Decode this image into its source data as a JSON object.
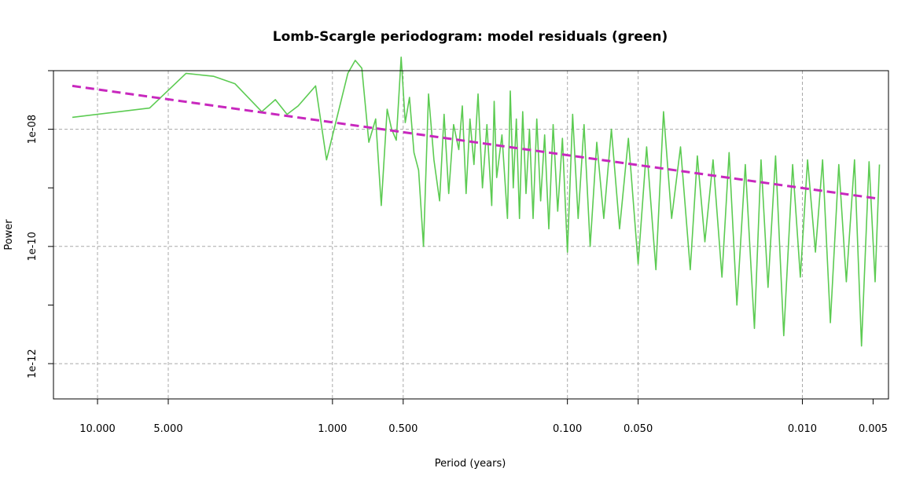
{
  "chart_data": {
    "type": "line",
    "title": "Lomb-Scargle periodogram: model residuals (green)",
    "xlabel": "Period (years)",
    "ylabel": "Power",
    "x_scale": "log",
    "y_scale": "log",
    "x_reversed": true,
    "xlim": [
      15.4,
      0.0043
    ],
    "ylim": [
      2.5e-13,
      1e-07
    ],
    "x_ticks": [
      10,
      5,
      1,
      0.5,
      0.1,
      0.05,
      0.01,
      0.005
    ],
    "x_tick_labels": [
      "10.000",
      "5.000",
      "1.000",
      "0.500",
      "0.100",
      "0.050",
      "0.010",
      "0.005"
    ],
    "y_ticks": [
      1e-12,
      1e-11,
      1e-10,
      1e-09,
      1e-08,
      1e-07
    ],
    "y_tick_labels": [
      "1e-12",
      "",
      "1e-10",
      "",
      "1e-08",
      ""
    ],
    "x_grid": [
      10,
      5,
      1,
      0.5,
      0.1,
      0.05,
      0.01
    ],
    "y_grid": [
      1e-12,
      1e-10,
      1e-08
    ],
    "grid": true,
    "series": [
      {
        "role": "periodogram",
        "color": "#5ccb52",
        "style": "solid",
        "x": [
          12.8,
          6.0,
          4.2,
          3.2,
          2.6,
          2.0,
          1.75,
          1.56,
          1.4,
          1.18,
          1.06,
          0.96,
          0.86,
          0.8,
          0.75,
          0.7,
          0.655,
          0.62,
          0.585,
          0.56,
          0.535,
          0.51,
          0.49,
          0.47,
          0.45,
          0.43,
          0.41,
          0.39,
          0.37,
          0.35,
          0.335,
          0.32,
          0.305,
          0.29,
          0.28,
          0.27,
          0.26,
          0.25,
          0.24,
          0.23,
          0.22,
          0.21,
          0.205,
          0.2,
          0.19,
          0.18,
          0.175,
          0.17,
          0.165,
          0.16,
          0.155,
          0.15,
          0.145,
          0.14,
          0.135,
          0.13,
          0.125,
          0.12,
          0.115,
          0.11,
          0.105,
          0.1,
          0.095,
          0.09,
          0.085,
          0.08,
          0.075,
          0.07,
          0.065,
          0.06,
          0.055,
          0.05,
          0.046,
          0.042,
          0.039,
          0.036,
          0.033,
          0.03,
          0.028,
          0.026,
          0.024,
          0.022,
          0.0205,
          0.019,
          0.0175,
          0.016,
          0.015,
          0.014,
          0.013,
          0.012,
          0.011,
          0.0102,
          0.0095,
          0.0088,
          0.0082,
          0.0076,
          0.007,
          0.0065,
          0.006,
          0.0056,
          0.0052,
          0.0049,
          0.0047
        ],
        "y": [
          1.6e-08,
          2.3e-08,
          9e-08,
          8e-08,
          6e-08,
          2e-08,
          3.2e-08,
          1.8e-08,
          2.5e-08,
          5.5e-08,
          3e-09,
          1.5e-08,
          9e-08,
          1.5e-07,
          1.1e-07,
          6e-09,
          1.5e-08,
          5e-10,
          2.2e-08,
          1e-08,
          6.5e-09,
          1.7e-07,
          1.3e-08,
          3.5e-08,
          4e-09,
          2e-09,
          1e-10,
          4e-08,
          3e-09,
          6e-10,
          1.8e-08,
          8e-10,
          1.2e-08,
          4.5e-09,
          2.5e-08,
          8e-10,
          1.5e-08,
          2.5e-09,
          4e-08,
          1e-09,
          1.2e-08,
          5e-10,
          3e-08,
          1.5e-09,
          8e-09,
          3e-10,
          4.5e-08,
          1e-09,
          1.5e-08,
          3e-10,
          2e-08,
          8e-10,
          1e-08,
          3e-10,
          1.5e-08,
          6e-10,
          8e-09,
          2e-10,
          1.2e-08,
          4e-10,
          7e-09,
          8e-11,
          1.8e-08,
          3e-10,
          1.2e-08,
          1e-10,
          6e-09,
          3e-10,
          1e-08,
          2e-10,
          7e-09,
          5e-11,
          5e-09,
          4e-11,
          2e-08,
          3e-10,
          5e-09,
          4e-11,
          3.5e-09,
          1.2e-10,
          3e-09,
          3e-11,
          4e-09,
          1e-11,
          2.5e-09,
          4e-12,
          3e-09,
          2e-11,
          3.5e-09,
          3e-12,
          2.5e-09,
          3e-11,
          3e-09,
          8e-11,
          3e-09,
          5e-12,
          2.5e-09,
          2.5e-11,
          3e-09,
          2e-12,
          2.8e-09,
          2.5e-11,
          2.5e-09
        ]
      },
      {
        "role": "fitted trend",
        "color": "#c828be",
        "style": "dashed",
        "x": [
          12.8,
          0.0047
        ],
        "y": [
          5.5e-08,
          6.5e-10
        ]
      }
    ]
  }
}
